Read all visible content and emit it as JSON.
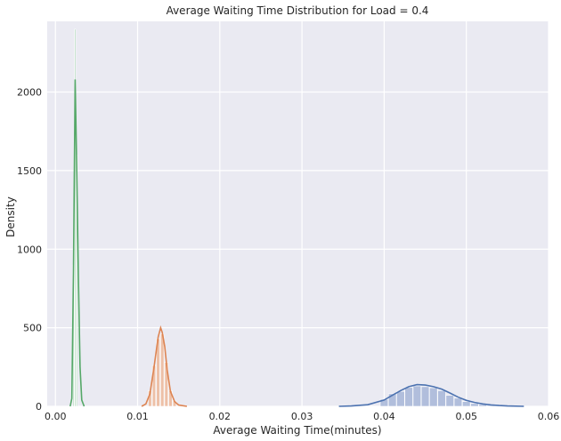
{
  "chart_data": {
    "type": "area",
    "title": "Average Waiting Time Distribution for Load = 0.4",
    "xlabel": "Average Waiting Time(minutes)",
    "ylabel": "Density",
    "xlim": [
      -0.001,
      0.06
    ],
    "ylim": [
      0,
      2450
    ],
    "x_ticks": [
      0.0,
      0.01,
      0.02,
      0.03,
      0.04,
      0.05,
      0.06
    ],
    "x_tick_labels": [
      "0.00",
      "0.01",
      "0.02",
      "0.03",
      "0.04",
      "0.05",
      "0.06"
    ],
    "y_ticks": [
      0,
      500,
      1000,
      1500,
      2000
    ],
    "y_tick_labels": [
      "0",
      "500",
      "1000",
      "1500",
      "2000"
    ],
    "grid": true,
    "background": "#eaeaf2",
    "series": [
      {
        "color": "#4c72b0",
        "hist_color": "#a3b3d6",
        "kde": [
          [
            0.0345,
            0
          ],
          [
            0.036,
            2
          ],
          [
            0.038,
            10
          ],
          [
            0.04,
            40
          ],
          [
            0.041,
            70
          ],
          [
            0.042,
            100
          ],
          [
            0.043,
            125
          ],
          [
            0.044,
            138
          ],
          [
            0.045,
            135
          ],
          [
            0.046,
            125
          ],
          [
            0.047,
            110
          ],
          [
            0.048,
            85
          ],
          [
            0.049,
            58
          ],
          [
            0.05,
            38
          ],
          [
            0.051,
            25
          ],
          [
            0.052,
            15
          ],
          [
            0.053,
            9
          ],
          [
            0.054,
            5
          ],
          [
            0.055,
            2
          ],
          [
            0.057,
            0
          ]
        ],
        "bins": [
          [
            0.04,
            45
          ],
          [
            0.041,
            80
          ],
          [
            0.042,
            95
          ],
          [
            0.043,
            120
          ],
          [
            0.044,
            130
          ],
          [
            0.045,
            125
          ],
          [
            0.046,
            118
          ],
          [
            0.047,
            100
          ],
          [
            0.048,
            70
          ],
          [
            0.049,
            52
          ],
          [
            0.05,
            30
          ],
          [
            0.051,
            18
          ],
          [
            0.052,
            12
          ],
          [
            0.053,
            6
          ]
        ],
        "bin_width": 0.00095
      },
      {
        "color": "#dd8452",
        "hist_color": "#eeb593",
        "kde": [
          [
            0.0105,
            0
          ],
          [
            0.011,
            15
          ],
          [
            0.0115,
            80
          ],
          [
            0.012,
            250
          ],
          [
            0.0125,
            440
          ],
          [
            0.0128,
            500
          ],
          [
            0.013,
            470
          ],
          [
            0.0133,
            380
          ],
          [
            0.0136,
            230
          ],
          [
            0.014,
            95
          ],
          [
            0.0145,
            30
          ],
          [
            0.015,
            8
          ],
          [
            0.016,
            0
          ]
        ],
        "bins": [
          [
            0.0115,
            100
          ],
          [
            0.012,
            260
          ],
          [
            0.0125,
            430
          ],
          [
            0.013,
            460
          ],
          [
            0.0135,
            280
          ],
          [
            0.014,
            100
          ],
          [
            0.0145,
            35
          ]
        ],
        "bin_width": 0.0004
      },
      {
        "color": "#55a868",
        "hist_color": "#a3d4ae",
        "kde": [
          [
            0.0018,
            0
          ],
          [
            0.002,
            50
          ],
          [
            0.0022,
            850
          ],
          [
            0.0024,
            2080
          ],
          [
            0.0026,
            1500
          ],
          [
            0.0028,
            800
          ],
          [
            0.003,
            250
          ],
          [
            0.0032,
            40
          ],
          [
            0.0035,
            0
          ]
        ],
        "bins": [
          [
            0.0022,
            900
          ],
          [
            0.0024,
            2400
          ],
          [
            0.0026,
            1600
          ]
        ],
        "bin_width": 0.00014
      }
    ]
  }
}
